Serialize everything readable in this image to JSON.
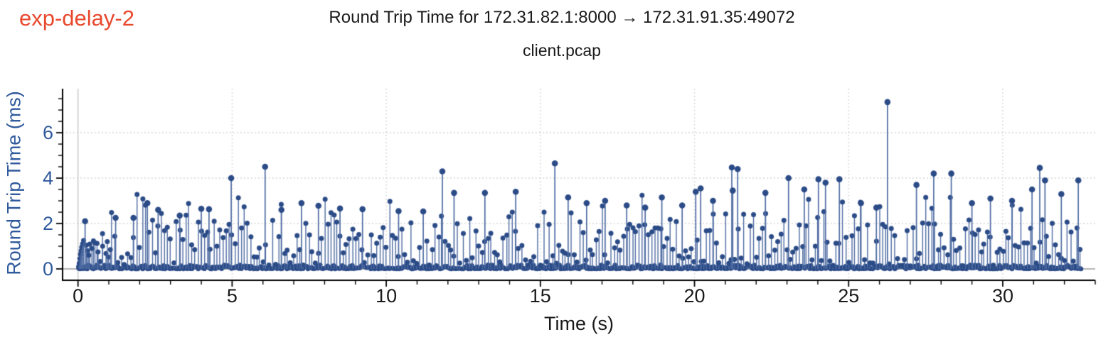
{
  "corner_label": {
    "text": "exp-delay-2",
    "color": "#e8492d"
  },
  "chart_data": {
    "type": "stem",
    "title": "Round Trip Time for 172.31.82.1:8000 → 172.31.91.35:49072",
    "subtitle": "client.pcap",
    "xlabel": "Time (s)",
    "ylabel": "Round Trip Time (ms)",
    "xlim": [
      -0.5,
      33.0
    ],
    "ylim": [
      -0.5,
      7.94
    ],
    "x_ticks": [
      0,
      5,
      10,
      15,
      20,
      25,
      30
    ],
    "y_ticks": [
      0,
      2,
      4,
      6
    ],
    "x_minor_step": 1,
    "y_minor_step": 0.5,
    "grid": {
      "dotted_color": "#cbcbcb",
      "zero_x_color": "#c7c7c7",
      "zero_y_color": "#b5b5b5"
    },
    "colors": {
      "marker": "#2b4b87",
      "stem": "#4e6ba2",
      "axis": "#000000",
      "x_tick_label": "#1a1a1a",
      "y_tick_label": "#305a9c",
      "x_axis_label": "#1a1a1a",
      "y_axis_label": "#305a9c"
    },
    "time_range": [
      0.0,
      32.55
    ],
    "sample_interval_s": 0.1,
    "baseline_band": {
      "interval_s": 0.04,
      "max_ms": 0.18
    },
    "background_distribution": {
      "bands": [
        {
          "p": 0.42,
          "min": 1.15,
          "max": 2.1
        },
        {
          "p": 0.3,
          "min": 0.45,
          "max": 1.15
        },
        {
          "p": 0.15,
          "min": 0.12,
          "max": 0.45
        },
        {
          "p": 0.1,
          "min": 2.1,
          "max": 2.9
        },
        {
          "p": 0.03,
          "min": 2.9,
          "max": 3.35
        }
      ],
      "rampup": {
        "until_s": 1.6,
        "base": 0.55,
        "slope": 0.3
      }
    },
    "start_cluster": [
      [
        0.02,
        0.1
      ],
      [
        0.04,
        0.25
      ],
      [
        0.06,
        0.45
      ],
      [
        0.08,
        0.65
      ],
      [
        0.1,
        0.8
      ],
      [
        0.12,
        0.95
      ],
      [
        0.15,
        1.1
      ],
      [
        0.18,
        1.25
      ],
      [
        0.27,
        1.05
      ],
      [
        0.35,
        0.6
      ],
      [
        0.45,
        0.9
      ],
      [
        0.55,
        1.15
      ],
      [
        0.65,
        0.75
      ],
      [
        0.8,
        1.0
      ],
      [
        0.95,
        1.2
      ],
      [
        1.05,
        0.85
      ]
    ],
    "major_spikes": [
      [
        0.23,
        2.1
      ],
      [
        1.22,
        2.25
      ],
      [
        1.8,
        2.25
      ],
      [
        2.25,
        2.9
      ],
      [
        2.6,
        2.6
      ],
      [
        3.3,
        2.35
      ],
      [
        4.0,
        2.65
      ],
      [
        4.25,
        2.63
      ],
      [
        4.97,
        4.0
      ],
      [
        6.07,
        4.5
      ],
      [
        6.6,
        2.6
      ],
      [
        7.25,
        2.9
      ],
      [
        7.8,
        2.78
      ],
      [
        8.5,
        2.66
      ],
      [
        9.23,
        2.63
      ],
      [
        10.4,
        2.55
      ],
      [
        11.2,
        2.53
      ],
      [
        11.82,
        4.3
      ],
      [
        12.2,
        3.35
      ],
      [
        13.2,
        3.35
      ],
      [
        14.2,
        3.4
      ],
      [
        15.47,
        4.65
      ],
      [
        15.9,
        3.15
      ],
      [
        16.5,
        2.9
      ],
      [
        17.1,
        3.0
      ],
      [
        17.8,
        2.8
      ],
      [
        18.4,
        2.7
      ],
      [
        18.94,
        3.15
      ],
      [
        19.6,
        2.8
      ],
      [
        20.04,
        3.4
      ],
      [
        20.2,
        3.55
      ],
      [
        20.6,
        3.0
      ],
      [
        21.21,
        4.47
      ],
      [
        21.24,
        3.45
      ],
      [
        21.4,
        4.4
      ],
      [
        22.3,
        3.35
      ],
      [
        23.05,
        4.0
      ],
      [
        23.56,
        3.5
      ],
      [
        24.02,
        3.95
      ],
      [
        24.25,
        3.8
      ],
      [
        24.7,
        3.95
      ],
      [
        25.4,
        2.9
      ],
      [
        25.9,
        2.7
      ],
      [
        26.26,
        7.35
      ],
      [
        27.2,
        3.7
      ],
      [
        27.76,
        4.2
      ],
      [
        28.33,
        4.2
      ],
      [
        29.0,
        2.9
      ],
      [
        29.6,
        3.1
      ],
      [
        30.3,
        3.0
      ],
      [
        30.95,
        3.5
      ],
      [
        31.2,
        4.45
      ],
      [
        31.37,
        3.9
      ],
      [
        31.9,
        3.3
      ],
      [
        32.45,
        3.9
      ]
    ]
  }
}
